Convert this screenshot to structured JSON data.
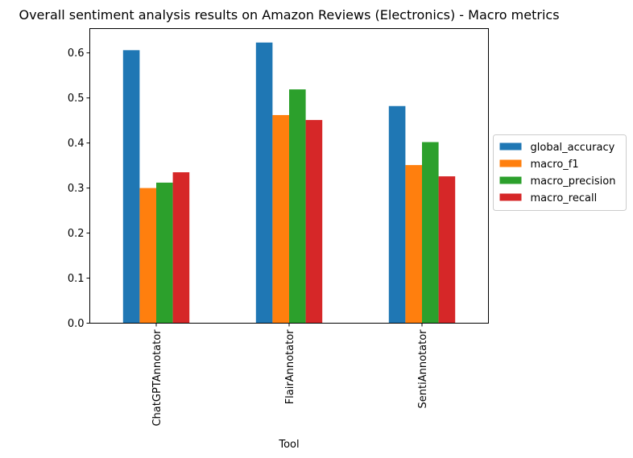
{
  "chart_data": {
    "type": "bar",
    "title": "Overall sentiment analysis results on Amazon Reviews (Electronics) - Macro metrics",
    "xlabel": "Tool",
    "ylabel": "",
    "categories": [
      "ChatGPTAnnotator",
      "FlairAnnotator",
      "SentiAnnotator"
    ],
    "series": [
      {
        "name": "global_accuracy",
        "color": "#1f77b4",
        "values": [
          0.606,
          0.623,
          0.482
        ]
      },
      {
        "name": "macro_f1",
        "color": "#ff7f0e",
        "values": [
          0.3,
          0.462,
          0.351
        ]
      },
      {
        "name": "macro_precision",
        "color": "#2ca02c",
        "values": [
          0.312,
          0.519,
          0.402
        ]
      },
      {
        "name": "macro_recall",
        "color": "#d62728",
        "values": [
          0.335,
          0.451,
          0.326
        ]
      }
    ],
    "ylim": [
      0,
      0.654
    ],
    "yticks": [
      "0.0",
      "0.1",
      "0.2",
      "0.3",
      "0.4",
      "0.5",
      "0.6"
    ],
    "grid": false,
    "legend": "center-right outside"
  }
}
